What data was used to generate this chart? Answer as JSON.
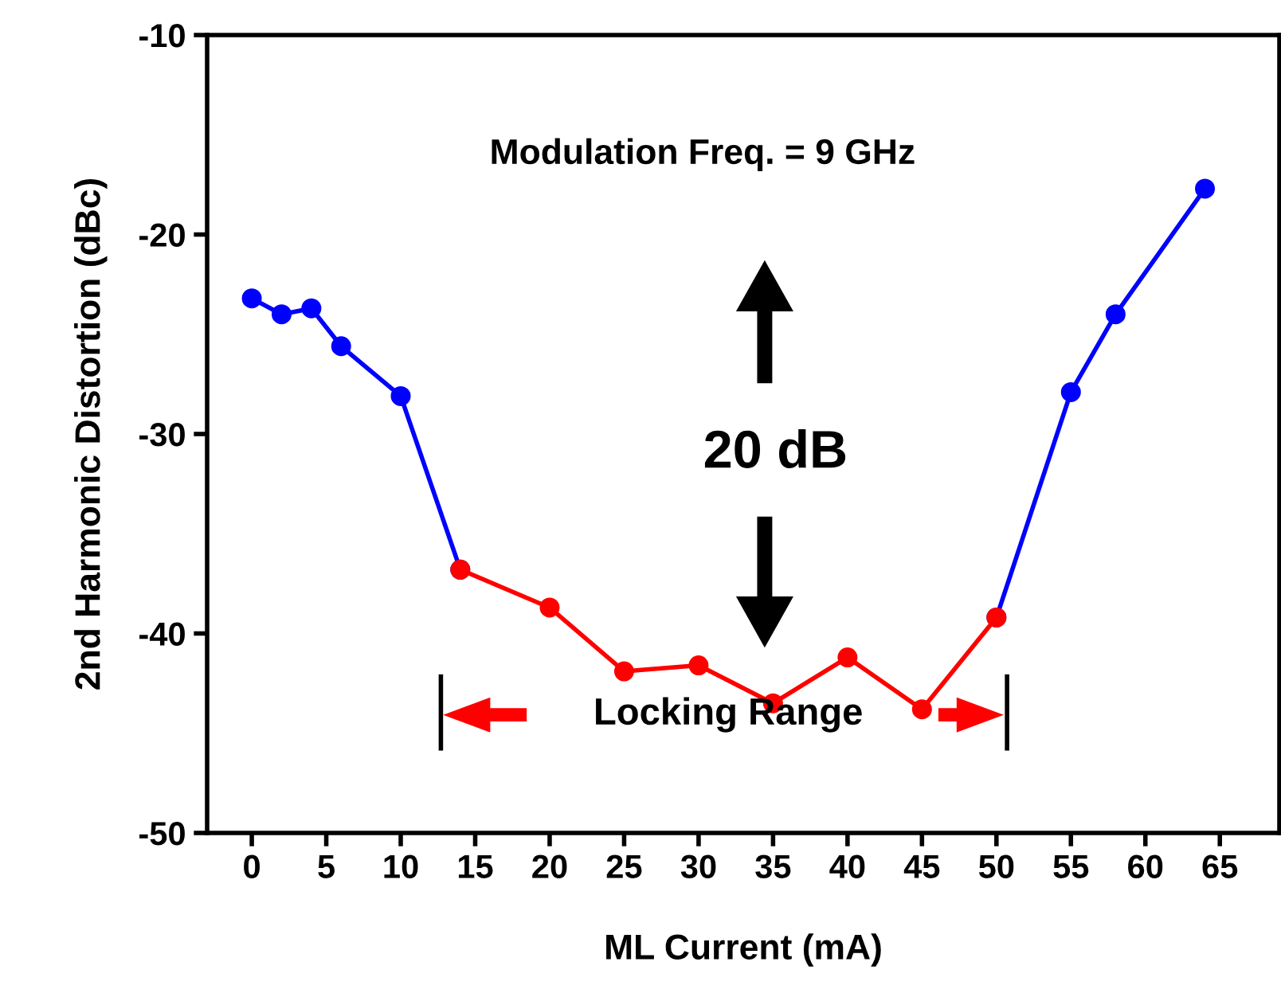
{
  "chart_data": {
    "type": "line",
    "xlabel": "ML Current (mA)",
    "ylabel": "2nd Harmonic Distortion (dBc)",
    "xlim": [
      -3,
      69
    ],
    "xticks": [
      0,
      5,
      10,
      15,
      20,
      25,
      30,
      35,
      40,
      45,
      50,
      55,
      60,
      65
    ],
    "ylim": [
      -50,
      -10
    ],
    "yticks": [
      -50,
      -40,
      -30,
      -20,
      -10
    ],
    "marker": "circle",
    "grid": false,
    "legend": false,
    "series": [
      {
        "color": "#0000ff",
        "x": [
          0,
          2,
          4,
          6,
          10,
          14
        ],
        "values": [
          -23.2,
          -24.0,
          -23.7,
          -25.6,
          -28.1,
          -36.8
        ]
      },
      {
        "color": "#0000ff",
        "x": [
          50,
          55,
          58,
          64
        ],
        "values": [
          -39.2,
          -27.9,
          -24.0,
          -17.7
        ]
      },
      {
        "color": "#ff0000",
        "x": [
          14,
          20,
          25,
          30,
          35,
          40,
          45,
          50
        ],
        "values": [
          -36.8,
          -38.7,
          -41.9,
          -41.6,
          -43.5,
          -41.2,
          -43.8,
          -39.2
        ]
      }
    ],
    "annotations": [
      "Modulation Freq. = 9 GHz",
      "20 dB",
      "Locking Range"
    ]
  }
}
